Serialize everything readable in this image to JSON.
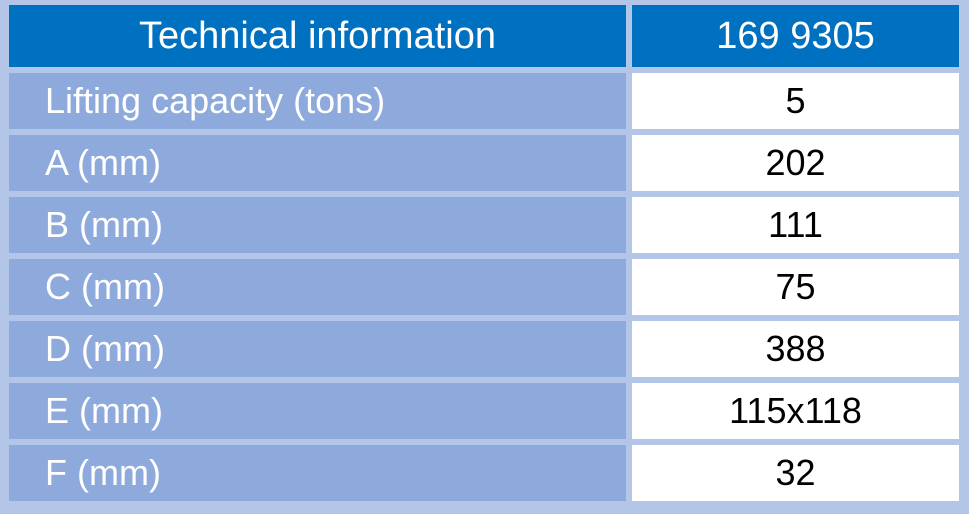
{
  "table": {
    "header": [
      "Technical information",
      "169 9305"
    ],
    "rows": [
      [
        "Lifting capacity (tons)",
        "5"
      ],
      [
        "A (mm)",
        "202"
      ],
      [
        "B (mm)",
        "111"
      ],
      [
        "C (mm)",
        "75"
      ],
      [
        "D (mm)",
        "388"
      ],
      [
        "E (mm)",
        "115x118"
      ],
      [
        "F (mm)",
        "32"
      ]
    ]
  }
}
